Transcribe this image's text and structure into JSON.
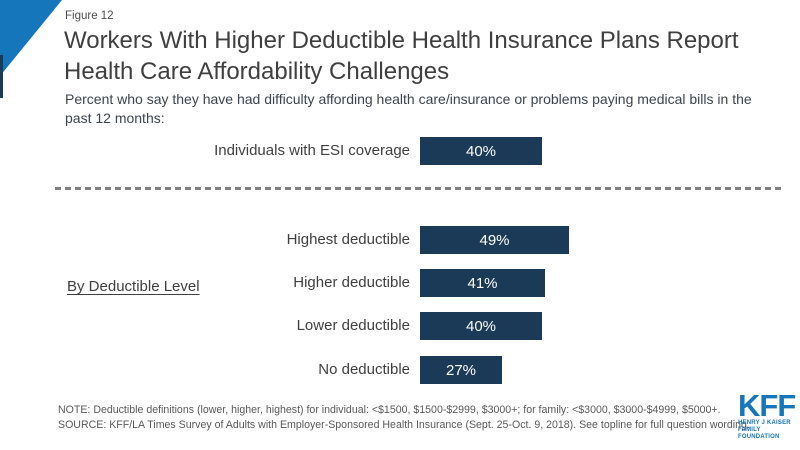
{
  "figure_label": "Figure 12",
  "chart_data": {
    "type": "bar",
    "orientation": "horizontal",
    "title": "Workers With Higher Deductible Health Insurance Plans Report Health Care Affordability Challenges",
    "subtitle": "Percent who say they have had difficulty affording health care/insurance or problems paying medical bills in the past 12 months:",
    "unit": "percent",
    "axis": "none",
    "value_label_position": "inside-center",
    "overall": {
      "label": "Individuals with ESI coverage",
      "value": 40,
      "display": "40%"
    },
    "group_label": "By Deductible Level",
    "categories": [
      "Highest deductible",
      "Higher deductible",
      "Lower deductible",
      "No deductible"
    ],
    "values": [
      49,
      41,
      40,
      27
    ],
    "value_labels": [
      "49%",
      "41%",
      "40%",
      "27%"
    ]
  },
  "note": "NOTE: Deductible definitions (lower, higher, highest) for individual: <$1500, $1500-$2999, $3000+; for family: <$3000, $3000-$4999, $5000+.",
  "source": "SOURCE: KFF/LA Times Survey of Adults with Employer-Sponsored Health Insurance (Sept. 25-Oct. 9, 2018). See topline for full question wording.",
  "logo": {
    "wordmark": "KFF",
    "tagline_line1": "HENRY J KAISER",
    "tagline_line2": "FAMILY FOUNDATION"
  },
  "colors": {
    "bar": "#1b3a57",
    "accent_blue": "#1576bc",
    "dashed_line": "#7f7f7f"
  }
}
